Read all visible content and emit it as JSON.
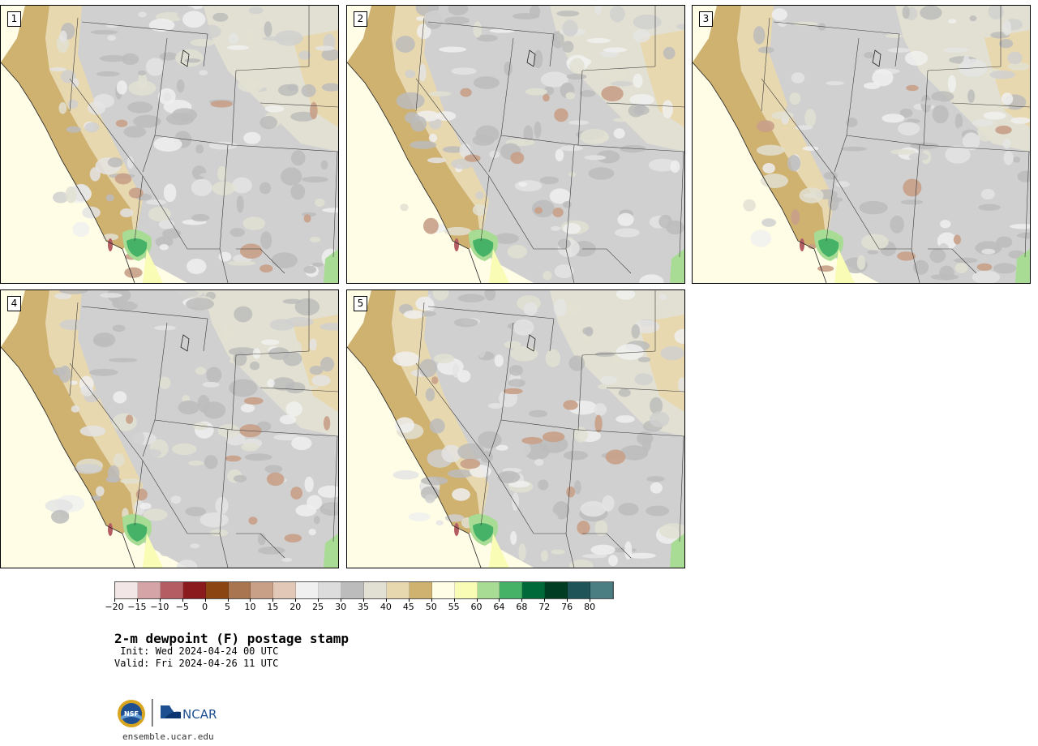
{
  "panels": [
    {
      "number": "1"
    },
    {
      "number": "2"
    },
    {
      "number": "3"
    },
    {
      "number": "4"
    },
    {
      "number": "5"
    }
  ],
  "colorbar": {
    "colors": [
      "#f3e6e6",
      "#d5a4a7",
      "#b45e63",
      "#8b1a1f",
      "#8a4513",
      "#a97550",
      "#c8a088",
      "#e2c8b6",
      "#f0f0f0",
      "#dcdcdc",
      "#bcbcbc",
      "#e2e0d2",
      "#e8d8b0",
      "#cfb170",
      "#fffde6",
      "#f8fcb4",
      "#a8dc94",
      "#45b267",
      "#00693a",
      "#003d22",
      "#1f5558",
      "#4b7e82"
    ],
    "tick_labels": [
      "−20",
      "−15",
      "−10",
      "−5",
      "0",
      "5",
      "10",
      "15",
      "20",
      "25",
      "30",
      "35",
      "40",
      "45",
      "50",
      "55",
      "60",
      "64",
      "68",
      "72",
      "76",
      "80"
    ]
  },
  "title": "2-m dewpoint (F) postage stamp",
  "init_line": " Init: Wed 2024-04-24 00 UTC",
  "valid_line": "Valid: Fri 2024-04-26 11 UTC",
  "logo": {
    "left_text": "NSF",
    "right_text": "NCAR"
  },
  "site": "ensemble.ucar.edu"
}
